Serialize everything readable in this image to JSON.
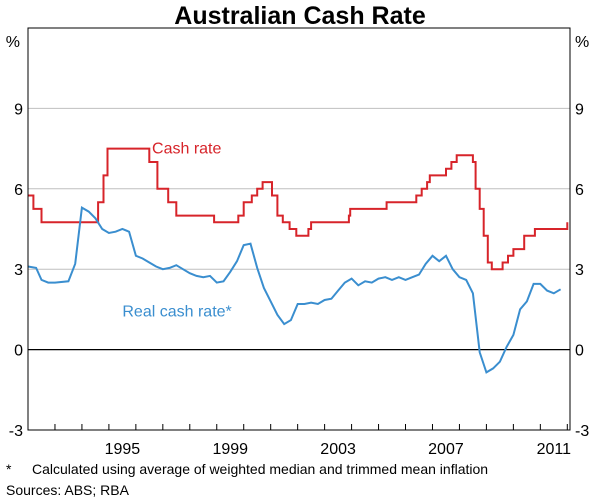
{
  "title": "Australian Cash Rate",
  "footnote": {
    "marker": "*",
    "text": "Calculated using average of weighted median and trimmed mean inflation"
  },
  "sources": "Sources: ABS; RBA",
  "chart_data": {
    "type": "line",
    "title": "Australian Cash Rate",
    "y_unit_left": "%",
    "y_unit_right": "%",
    "ylim": [
      -3,
      12
    ],
    "yticks": [
      -3,
      0,
      3,
      6,
      9
    ],
    "xlim": [
      1992.0,
      2012.1
    ],
    "xticks": [
      1995,
      1999,
      2003,
      2007,
      2011
    ],
    "grid": "horizontal",
    "zero_line": true,
    "series": [
      {
        "name": "Cash rate",
        "color": "#d7242a",
        "step": true,
        "x": [
          1992.0,
          1992.2,
          1992.5,
          1993.4,
          1994.6,
          1994.8,
          1994.95,
          1996.1,
          1996.5,
          1996.8,
          1997.2,
          1997.5,
          1998.9,
          1999.8,
          2000.0,
          2000.3,
          2000.5,
          2000.7,
          2000.9,
          2001.05,
          2001.25,
          2001.45,
          2001.7,
          2001.95,
          2002.4,
          2002.5,
          2003.9,
          2003.95,
          2005.2,
          2005.3,
          2006.4,
          2006.6,
          2006.8,
          2006.9,
          2007.5,
          2007.7,
          2007.9,
          2008.5,
          2008.6,
          2008.75,
          2008.9,
          2009.05,
          2009.2,
          2009.4,
          2009.6,
          2009.8,
          2010.0,
          2010.4,
          2010.8,
          2012.0
        ],
        "y": [
          5.75,
          5.25,
          4.75,
          4.75,
          5.5,
          6.5,
          7.5,
          7.5,
          7.0,
          6.0,
          5.5,
          5.0,
          4.75,
          5.0,
          5.5,
          5.75,
          6.0,
          6.25,
          6.25,
          5.75,
          5.0,
          4.75,
          4.5,
          4.25,
          4.5,
          4.75,
          5.0,
          5.25,
          5.25,
          5.5,
          5.75,
          6.0,
          6.25,
          6.5,
          6.75,
          7.0,
          7.25,
          7.0,
          6.0,
          5.25,
          4.25,
          3.25,
          3.0,
          3.0,
          3.25,
          3.5,
          3.75,
          4.25,
          4.5,
          4.75
        ]
      },
      {
        "name": "Real cash rate*",
        "color": "#3a8ecf",
        "step": false,
        "x": [
          1992.0,
          1992.3,
          1992.5,
          1992.75,
          1993.0,
          1993.5,
          1993.75,
          1994.0,
          1994.25,
          1994.5,
          1994.75,
          1995.0,
          1995.25,
          1995.5,
          1995.75,
          1996.0,
          1996.25,
          1996.5,
          1996.75,
          1997.0,
          1997.25,
          1997.5,
          1997.75,
          1998.0,
          1998.25,
          1998.5,
          1998.75,
          1999.0,
          1999.25,
          1999.5,
          1999.75,
          2000.0,
          2000.25,
          2000.5,
          2000.75,
          2001.0,
          2001.25,
          2001.5,
          2001.75,
          2002.0,
          2002.25,
          2002.5,
          2002.75,
          2003.0,
          2003.25,
          2003.5,
          2003.75,
          2004.0,
          2004.25,
          2004.5,
          2004.75,
          2005.0,
          2005.25,
          2005.5,
          2005.75,
          2006.0,
          2006.25,
          2006.5,
          2006.75,
          2007.0,
          2007.25,
          2007.5,
          2007.75,
          2008.0,
          2008.25,
          2008.5,
          2008.75,
          2009.0,
          2009.25,
          2009.5,
          2009.75,
          2010.0,
          2010.25,
          2010.5,
          2010.75,
          2011.0,
          2011.25,
          2011.5,
          2011.75
        ],
        "y": [
          3.1,
          3.05,
          2.6,
          2.5,
          2.5,
          2.55,
          3.2,
          5.3,
          5.15,
          4.9,
          4.5,
          4.35,
          4.4,
          4.5,
          4.4,
          3.5,
          3.4,
          3.25,
          3.1,
          3.0,
          3.05,
          3.15,
          3.0,
          2.85,
          2.75,
          2.7,
          2.75,
          2.5,
          2.55,
          2.9,
          3.3,
          3.9,
          3.95,
          3.05,
          2.3,
          1.8,
          1.3,
          0.95,
          1.1,
          1.7,
          1.7,
          1.75,
          1.7,
          1.85,
          1.9,
          2.2,
          2.5,
          2.65,
          2.4,
          2.55,
          2.5,
          2.65,
          2.7,
          2.6,
          2.7,
          2.6,
          2.7,
          2.8,
          3.2,
          3.5,
          3.3,
          3.5,
          3.0,
          2.7,
          2.6,
          2.1,
          -0.1,
          -0.85,
          -0.7,
          -0.45,
          0.1,
          0.55,
          1.5,
          1.8,
          2.45,
          2.45,
          2.2,
          2.1,
          2.25
        ]
      }
    ],
    "annotations": [
      {
        "text": "Cash rate",
        "series": 0,
        "x": 1996.6,
        "y": 7.55
      },
      {
        "text": "Real cash rate*",
        "series": 1,
        "x": 1995.5,
        "y": 1.45
      }
    ]
  }
}
